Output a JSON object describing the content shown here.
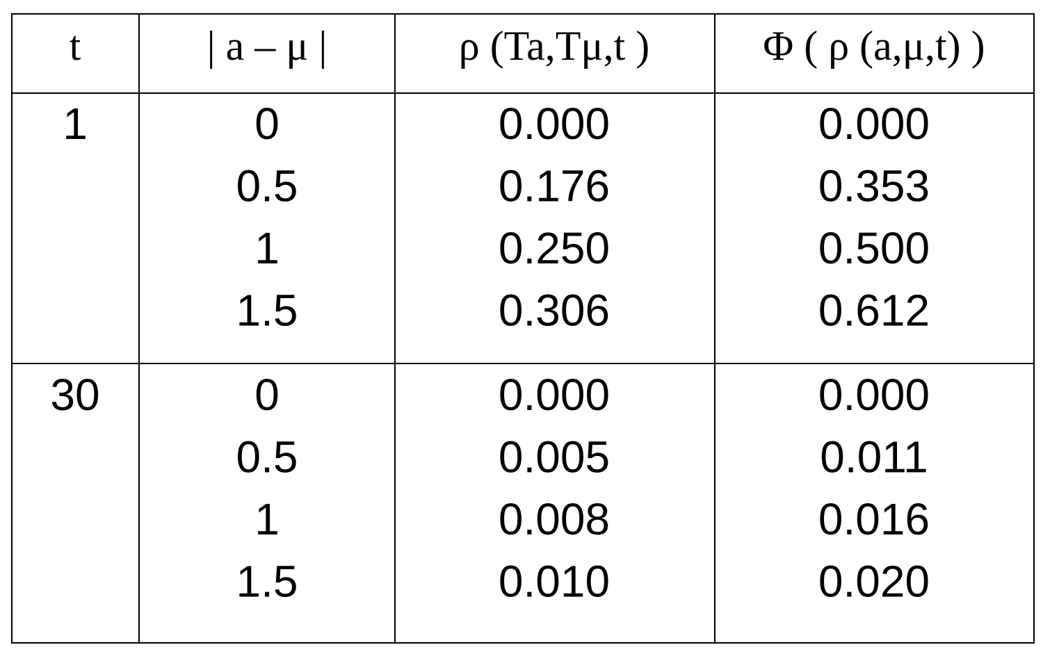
{
  "table": {
    "headers": [
      "t",
      "| a – μ |",
      "ρ (Ta,Tμ,t )",
      "Φ ( ρ (a,μ,t) )"
    ],
    "groups": [
      {
        "t": "1",
        "rows": [
          [
            "0",
            "0.000",
            "0.000"
          ],
          [
            "0.5",
            "0.176",
            "0.353"
          ],
          [
            "1",
            "0.250",
            "0.500"
          ],
          [
            "1.5",
            "0.306",
            "0.612"
          ]
        ]
      },
      {
        "t": "30",
        "rows": [
          [
            "0",
            "0.000",
            "0.000"
          ],
          [
            "0.5",
            "0.005",
            "0.011"
          ],
          [
            "1",
            "0.008",
            "0.016"
          ],
          [
            "1.5",
            "0.010",
            "0.020"
          ]
        ]
      }
    ]
  }
}
